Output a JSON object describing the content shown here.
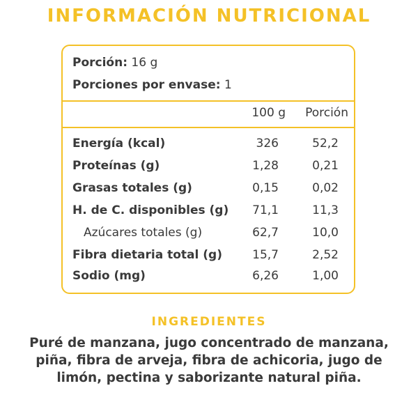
{
  "header": {
    "title": "INFORMACIÓN NUTRICIONAL"
  },
  "serving": {
    "portion_label": "Porción:",
    "portion_value": "16 g",
    "per_pack_label": "Porciones por envase:",
    "per_pack_value": "1"
  },
  "columns": {
    "col1": "100 g",
    "col2": "Porción"
  },
  "rows": [
    {
      "label": "Energía (kcal)",
      "v100": "326",
      "vpor": "52,2"
    },
    {
      "label": "Proteínas (g)",
      "v100": "1,28",
      "vpor": "0,21"
    },
    {
      "label": "Grasas totales (g)",
      "v100": "0,15",
      "vpor": "0,02"
    },
    {
      "label": "H. de C. disponibles (g)",
      "v100": "71,1",
      "vpor": "11,3"
    },
    {
      "label": "Azúcares totales (g)",
      "v100": "62,7",
      "vpor": "10,0"
    },
    {
      "label": "Fibra dietaria total (g)",
      "v100": "15,7",
      "vpor": "2,52"
    },
    {
      "label": "Sodio (mg)",
      "v100": "6,26",
      "vpor": "1,00"
    }
  ],
  "ingredients": {
    "title": "INGREDIENTES",
    "text": "Puré de manzana, jugo concentrado de manzana, piña, fibra de arveja, fibra de achicoria, jugo de limón, pectina y saborizante natural piña."
  },
  "colors": {
    "accent": "#f4c127",
    "text": "#3a3a3a"
  }
}
